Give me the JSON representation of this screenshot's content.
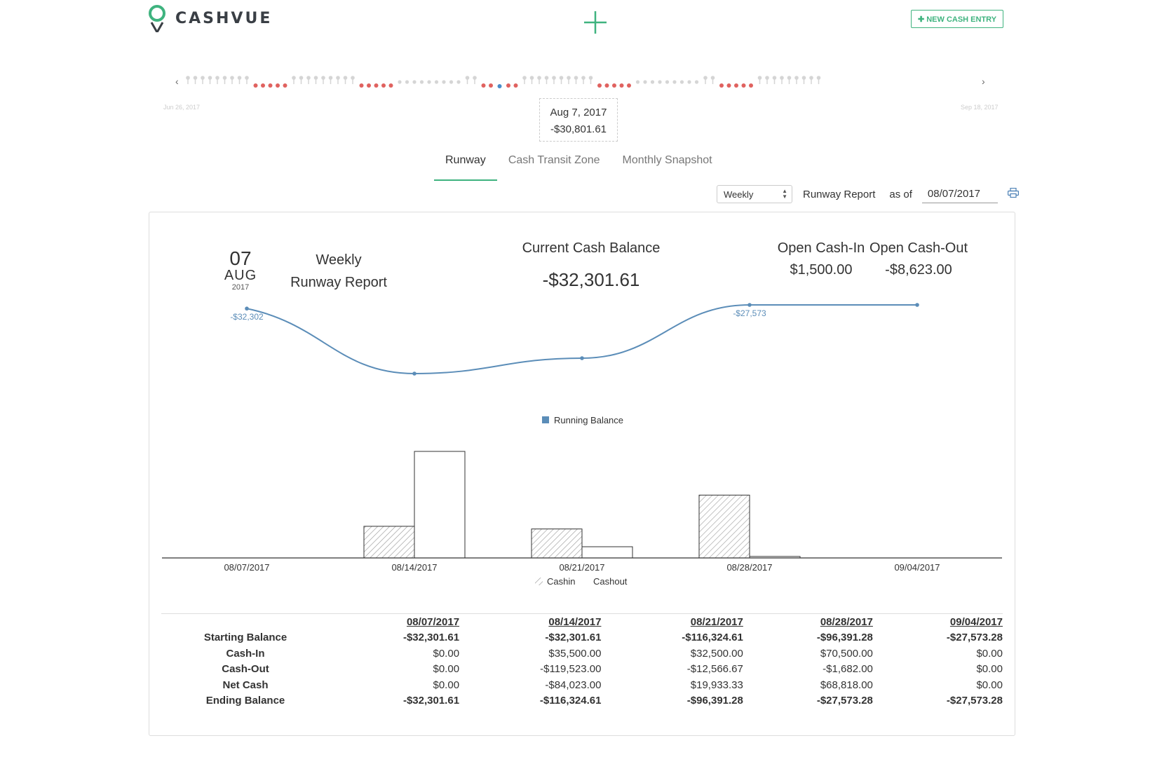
{
  "header": {
    "brand": "CASHVUE",
    "new_entry_label": "✚ NEW CASH ENTRY"
  },
  "timeline": {
    "prev": "‹",
    "next": "›",
    "start_date": "Jun 26, 2017",
    "end_date": "Sep 18, 2017",
    "tooltip_date": "Aug 7, 2017",
    "tooltip_value": "-$30,801.61",
    "colors": {
      "neutral": "#d5d5d5",
      "negative": "#e0625f",
      "selected": "#4a8dc9"
    }
  },
  "tabs": [
    {
      "label": "Runway",
      "active": true
    },
    {
      "label": "Cash Transit Zone",
      "active": false
    },
    {
      "label": "Monthly Snapshot",
      "active": false
    }
  ],
  "controls": {
    "period": "Weekly",
    "report_label": "Runway Report",
    "as_of_label": "as of",
    "as_of_date": "08/07/2017"
  },
  "summary": {
    "day": "07",
    "month": "AUG",
    "year": "2017",
    "title_line1": "Weekly",
    "title_line2": "Runway Report",
    "current_cash_label": "Current Cash Balance",
    "current_cash_value": "-$32,301.61",
    "open_in_label": "Open Cash-In",
    "open_in_value": "$1,500.00",
    "open_out_label": "Open Cash-Out",
    "open_out_value": "-$8,623.00"
  },
  "chart_data": [
    {
      "type": "line",
      "x": [
        "08/07/2017",
        "08/14/2017",
        "08/21/2017",
        "08/28/2017",
        "09/04/2017"
      ],
      "series": [
        {
          "name": "Running Balance",
          "values": [
            -32301.61,
            -116324.61,
            -96391.28,
            -27573.28,
            -27573.28
          ]
        }
      ],
      "point_labels": [
        "-$32,302",
        "",
        "",
        "-$27,573",
        ""
      ],
      "legend": "center",
      "color": "#5b8db8"
    },
    {
      "type": "bar",
      "categories": [
        "08/07/2017",
        "08/14/2017",
        "08/21/2017",
        "08/28/2017",
        "09/04/2017"
      ],
      "series": [
        {
          "name": "Cashin",
          "values": [
            0,
            35500,
            32500,
            70500,
            0
          ]
        },
        {
          "name": "Cashout",
          "values": [
            0,
            119523,
            12566.67,
            1682,
            0
          ]
        }
      ],
      "legend": "bottom-center"
    }
  ],
  "table": {
    "columns": [
      "08/07/2017",
      "08/14/2017",
      "08/21/2017",
      "08/28/2017",
      "09/04/2017"
    ],
    "rows": [
      {
        "label": "Starting Balance",
        "bold": true,
        "values": [
          "-$32,301.61",
          "-$32,301.61",
          "-$116,324.61",
          "-$96,391.28",
          "-$27,573.28"
        ]
      },
      {
        "label": "Cash-In",
        "bold": false,
        "values": [
          "$0.00",
          "$35,500.00",
          "$32,500.00",
          "$70,500.00",
          "$0.00"
        ]
      },
      {
        "label": "Cash-Out",
        "bold": false,
        "values": [
          "$0.00",
          "-$119,523.00",
          "-$12,566.67",
          "-$1,682.00",
          "$0.00"
        ]
      },
      {
        "label": "Net Cash",
        "bold": false,
        "values": [
          "$0.00",
          "-$84,023.00",
          "$19,933.33",
          "$68,818.00",
          "$0.00"
        ]
      },
      {
        "label": "Ending Balance",
        "bold": true,
        "values": [
          "-$32,301.61",
          "-$116,324.61",
          "-$96,391.28",
          "-$27,573.28",
          "-$27,573.28"
        ]
      }
    ]
  }
}
